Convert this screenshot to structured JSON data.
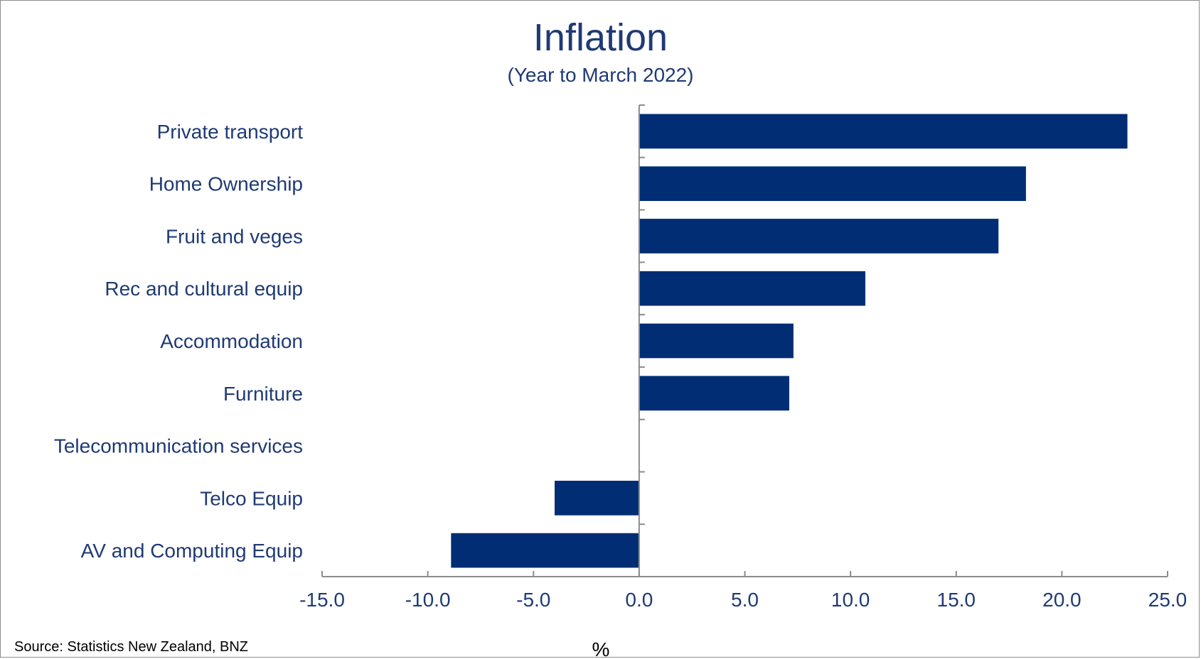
{
  "chart_data": {
    "type": "bar",
    "orientation": "horizontal",
    "title": "Inflation",
    "subtitle": "(Year to March 2022)",
    "xlabel": "%",
    "ylabel": "",
    "source": "Source: Statistics New Zealand, BNZ",
    "categories": [
      "Private transport",
      "Home Ownership",
      "Fruit and veges",
      "Rec and cultural equip",
      "Accommodation",
      "Furniture",
      "Telecommunication services",
      "Telco Equip",
      "AV and Computing Equip"
    ],
    "values": [
      23.1,
      18.3,
      17.0,
      10.7,
      7.3,
      7.1,
      0.0,
      -4.0,
      -8.9
    ],
    "xlim": [
      -15,
      25
    ],
    "xticks": [
      "-15.0",
      "-10.0",
      "-5.0",
      "0.0",
      "5.0",
      "10.0",
      "15.0",
      "20.0",
      "25.0"
    ],
    "xtick_values": [
      -15,
      -10,
      -5,
      0,
      5,
      10,
      15,
      20,
      25
    ],
    "grid": false,
    "legend": "none",
    "bar_color": "#002d74",
    "text_color": "#1f3a74"
  }
}
